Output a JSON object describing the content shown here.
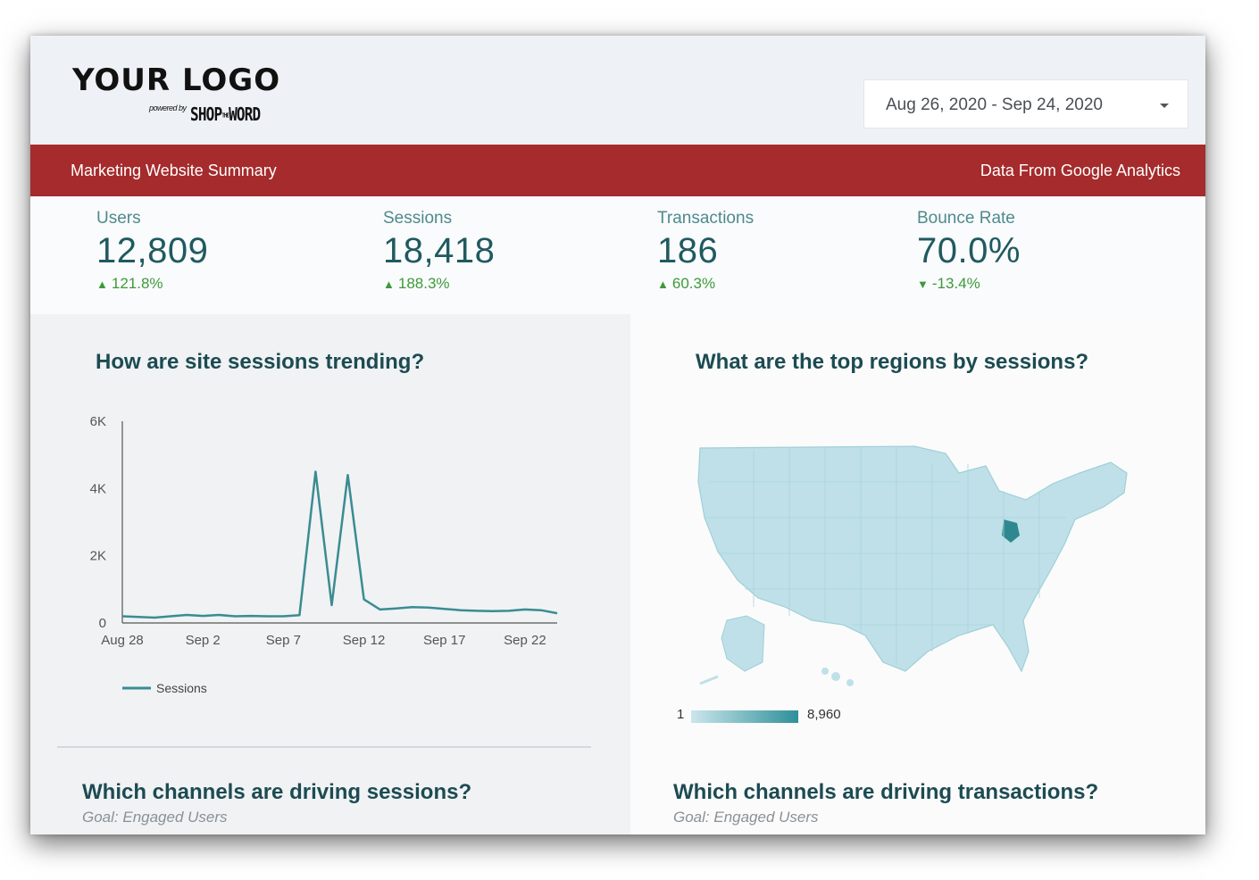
{
  "header": {
    "logo_text": "YOUR LOGO",
    "powered_prefix": "powered by",
    "powered_brand_a": "SHOP",
    "powered_brand_the": "THE",
    "powered_brand_b": "WORD",
    "date_range": "Aug 26, 2020 - Sep 24, 2020",
    "dropdown_icon": "caret-down-icon"
  },
  "banner": {
    "title": "Marketing Website Summary",
    "source": "Data From Google Analytics",
    "color": "#a52b2c"
  },
  "kpis": [
    {
      "label": "Users",
      "value": "12,809",
      "delta": "121.8%",
      "direction": "up"
    },
    {
      "label": "Sessions",
      "value": "18,418",
      "delta": "188.3%",
      "direction": "up"
    },
    {
      "label": "Transactions",
      "value": "186",
      "delta": "60.3%",
      "direction": "up"
    },
    {
      "label": "Bounce Rate",
      "value": "70.0%",
      "delta": "-13.4%",
      "direction": "down"
    }
  ],
  "panels": {
    "sessions_trend_title": "How are site sessions trending?",
    "regions_title": "What are the top regions by sessions?",
    "channels_sessions_title": "Which channels are driving sessions?",
    "channels_sessions_goal": "Goal: Engaged Users",
    "channels_transactions_title": "Which channels are driving transactions?",
    "channels_transactions_goal": "Goal: Engaged Users",
    "map_scale_min": "1",
    "map_scale_max": "8,960"
  },
  "chart_data": {
    "type": "line",
    "title": "How are site sessions trending?",
    "x_tick_labels": [
      "Aug 28",
      "Sep 2",
      "Sep 7",
      "Sep 12",
      "Sep 17",
      "Sep 22"
    ],
    "y_tick_labels": [
      "0",
      "2K",
      "4K",
      "6K"
    ],
    "ylim": [
      0,
      6000
    ],
    "x": [
      "Aug 28",
      "Aug 29",
      "Aug 30",
      "Aug 31",
      "Sep 1",
      "Sep 2",
      "Sep 3",
      "Sep 4",
      "Sep 5",
      "Sep 6",
      "Sep 7",
      "Sep 8",
      "Sep 9",
      "Sep 10",
      "Sep 11",
      "Sep 12",
      "Sep 13",
      "Sep 14",
      "Sep 15",
      "Sep 16",
      "Sep 17",
      "Sep 18",
      "Sep 19",
      "Sep 20",
      "Sep 21",
      "Sep 22",
      "Sep 23",
      "Sep 24"
    ],
    "series": [
      {
        "name": "Sessions",
        "values": [
          200,
          180,
          160,
          200,
          240,
          210,
          240,
          200,
          210,
          200,
          200,
          230,
          4500,
          530,
          4400,
          700,
          400,
          430,
          470,
          460,
          420,
          380,
          360,
          350,
          360,
          400,
          380,
          290
        ]
      }
    ],
    "legend": "bottom-left",
    "color": "#3a8c92",
    "grid": false
  }
}
